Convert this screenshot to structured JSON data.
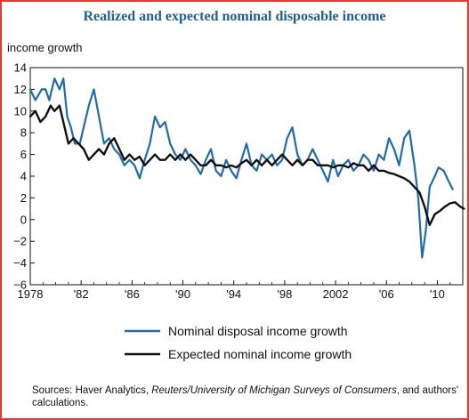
{
  "title": "Realized and expected nominal disposable income",
  "chart_data": {
    "type": "line",
    "title": "Realized and expected nominal disposable income",
    "ylabel": "income growth",
    "ylim": [
      -6,
      14
    ],
    "xlim": [
      1978,
      2012
    ],
    "x_tick_labels": [
      "1978",
      "'82",
      "'86",
      "'90",
      "'94",
      "'98",
      "2002",
      "'06",
      "'10"
    ],
    "y_tick_labels": [
      "14",
      "12",
      "10",
      "8",
      "6",
      "4",
      "2",
      "0",
      "−2",
      "−4",
      "−6"
    ],
    "legend_position": "bottom",
    "series": [
      {
        "name": "Nominal disposal income growth",
        "color": "#1f6bb0",
        "x": [
          1978.0,
          1978.4,
          1978.9,
          1979.2,
          1979.5,
          1979.9,
          1980.3,
          1980.6,
          1980.9,
          1981.2,
          1981.5,
          1981.9,
          1982.2,
          1982.6,
          1983.0,
          1983.4,
          1983.8,
          1984.2,
          1984.6,
          1985.0,
          1985.4,
          1985.8,
          1986.2,
          1986.6,
          1987.0,
          1987.4,
          1987.8,
          1988.2,
          1988.6,
          1989.0,
          1989.4,
          1989.8,
          1990.2,
          1990.6,
          1991.0,
          1991.4,
          1991.8,
          1992.2,
          1992.6,
          1993.0,
          1993.4,
          1993.8,
          1994.2,
          1994.6,
          1995.0,
          1995.4,
          1995.8,
          1996.2,
          1996.6,
          1997.0,
          1997.4,
          1997.8,
          1998.2,
          1998.6,
          1999.0,
          1999.4,
          1999.8,
          2000.2,
          2000.6,
          2001.0,
          2001.4,
          2001.8,
          2002.2,
          2002.6,
          2003.0,
          2003.4,
          2003.8,
          2004.2,
          2004.6,
          2005.0,
          2005.4,
          2005.8,
          2006.2,
          2006.6,
          2007.0,
          2007.4,
          2007.8,
          2008.2,
          2008.5,
          2008.8,
          2009.1,
          2009.4,
          2009.8,
          2010.1,
          2010.5,
          2010.9,
          2011.2
        ],
        "values": [
          12.0,
          11.0,
          12.0,
          12.0,
          11.0,
          13.0,
          12.0,
          13.0,
          9.5,
          8.5,
          7.0,
          7.0,
          8.5,
          10.5,
          12.0,
          9.5,
          7.0,
          7.5,
          6.5,
          6.0,
          5.0,
          5.5,
          5.0,
          3.8,
          5.5,
          7.0,
          9.5,
          8.5,
          9.0,
          7.0,
          6.0,
          5.5,
          6.5,
          5.5,
          5.0,
          4.2,
          5.5,
          6.5,
          4.5,
          4.0,
          5.5,
          4.5,
          3.8,
          5.5,
          7.0,
          5.0,
          4.5,
          6.0,
          5.5,
          6.0,
          5.0,
          5.5,
          7.5,
          8.5,
          6.0,
          5.0,
          5.5,
          6.5,
          5.5,
          4.5,
          3.5,
          5.5,
          4.0,
          5.0,
          5.5,
          4.5,
          5.0,
          6.0,
          5.5,
          4.5,
          6.0,
          5.5,
          7.5,
          6.5,
          5.0,
          7.5,
          8.2,
          5.0,
          2.0,
          -3.5,
          -1.0,
          3.0,
          4.0,
          4.8,
          4.5,
          3.5,
          2.8
        ]
      },
      {
        "name": "Expected nominal income growth",
        "color": "#111111",
        "x": [
          1978.0,
          1978.4,
          1978.8,
          1979.2,
          1979.6,
          1979.9,
          1980.3,
          1980.7,
          1981.0,
          1981.4,
          1981.8,
          1982.2,
          1982.6,
          1983.0,
          1983.4,
          1983.8,
          1984.2,
          1984.6,
          1985.0,
          1985.4,
          1985.8,
          1986.2,
          1986.6,
          1987.0,
          1987.4,
          1987.8,
          1988.2,
          1988.6,
          1989.0,
          1989.4,
          1989.8,
          1990.2,
          1990.6,
          1991.0,
          1991.4,
          1991.8,
          1992.2,
          1992.6,
          1993.0,
          1993.4,
          1993.8,
          1994.2,
          1994.6,
          1995.0,
          1995.4,
          1995.8,
          1996.2,
          1996.6,
          1997.0,
          1997.4,
          1997.8,
          1998.2,
          1998.6,
          1999.0,
          1999.4,
          1999.8,
          2000.2,
          2000.6,
          2001.0,
          2001.4,
          2001.8,
          2002.2,
          2002.6,
          2003.0,
          2003.4,
          2003.8,
          2004.2,
          2004.6,
          2005.0,
          2005.4,
          2005.8,
          2006.2,
          2006.6,
          2007.0,
          2007.4,
          2007.8,
          2008.2,
          2008.6,
          2009.0,
          2009.4,
          2009.8,
          2010.2,
          2010.6,
          2011.0,
          2011.4,
          2011.8,
          2012.1
        ],
        "values": [
          9.5,
          10.0,
          9.0,
          9.5,
          10.5,
          10.0,
          10.5,
          8.5,
          7.0,
          7.5,
          7.0,
          6.5,
          5.5,
          6.0,
          6.5,
          6.0,
          7.0,
          7.5,
          6.5,
          5.5,
          6.0,
          5.5,
          5.8,
          5.0,
          5.5,
          6.0,
          5.5,
          5.5,
          6.0,
          5.5,
          6.0,
          5.5,
          6.0,
          5.5,
          5.0,
          5.0,
          5.5,
          5.0,
          5.0,
          4.8,
          5.0,
          4.8,
          5.2,
          5.5,
          5.0,
          5.5,
          5.0,
          5.5,
          5.0,
          5.5,
          6.0,
          5.5,
          5.0,
          5.5,
          5.0,
          5.5,
          5.5,
          5.0,
          5.0,
          5.0,
          4.8,
          5.0,
          5.0,
          4.8,
          5.2,
          5.0,
          5.0,
          4.5,
          5.0,
          4.5,
          4.5,
          4.3,
          4.2,
          4.0,
          3.8,
          3.5,
          3.0,
          2.5,
          1.2,
          -0.5,
          0.5,
          0.8,
          1.2,
          1.5,
          1.6,
          1.2,
          1.0
        ]
      }
    ]
  },
  "sources": {
    "prefix": "Sources: Haver Analytics, ",
    "italic": "Reuters/University of Michigan Surveys of Consumers",
    "suffix": ", and authors' calculations."
  }
}
